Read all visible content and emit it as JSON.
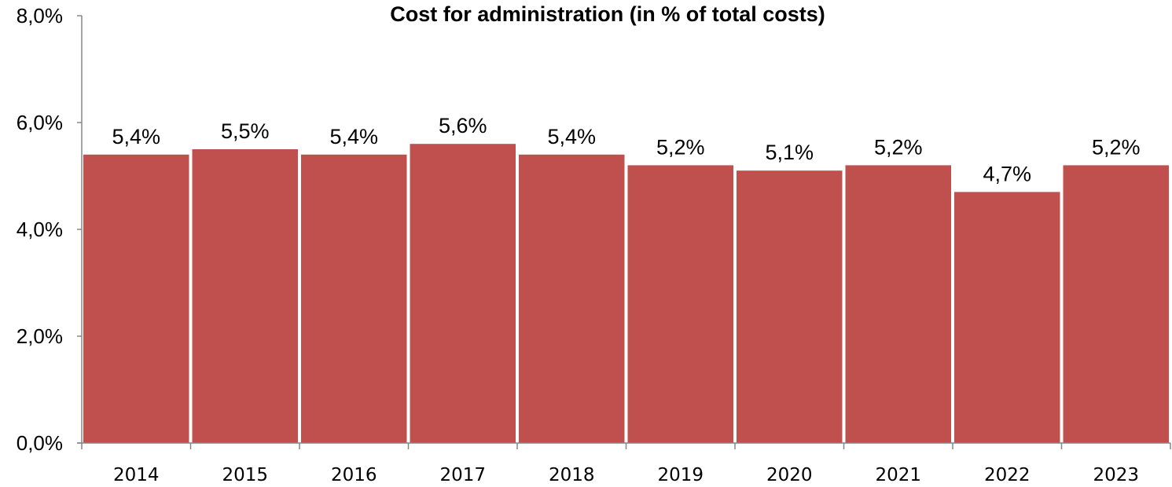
{
  "chart_data": {
    "type": "bar",
    "title": "Cost for administration (in % of total costs)",
    "categories": [
      "2014",
      "2015",
      "2016",
      "2017",
      "2018",
      "2019",
      "2020",
      "2021",
      "2022",
      "2023"
    ],
    "values": [
      5.4,
      5.5,
      5.4,
      5.6,
      5.4,
      5.2,
      5.1,
      5.2,
      4.7,
      5.2
    ],
    "data_labels": [
      "5,4%",
      "5,5%",
      "5,4%",
      "5,6%",
      "5,4%",
      "5,2%",
      "5,1%",
      "5,2%",
      "4,7%",
      "5,2%"
    ],
    "y_ticks": [
      0,
      2,
      4,
      6,
      8
    ],
    "y_tick_labels": [
      "0,0%",
      "2,0%",
      "4,0%",
      "6,0%",
      "8,0%"
    ],
    "ylim": [
      0,
      8
    ],
    "xlabel": "",
    "ylabel": "",
    "grid": false,
    "bar_color": "#c0504d",
    "axis_color": "#868686"
  }
}
